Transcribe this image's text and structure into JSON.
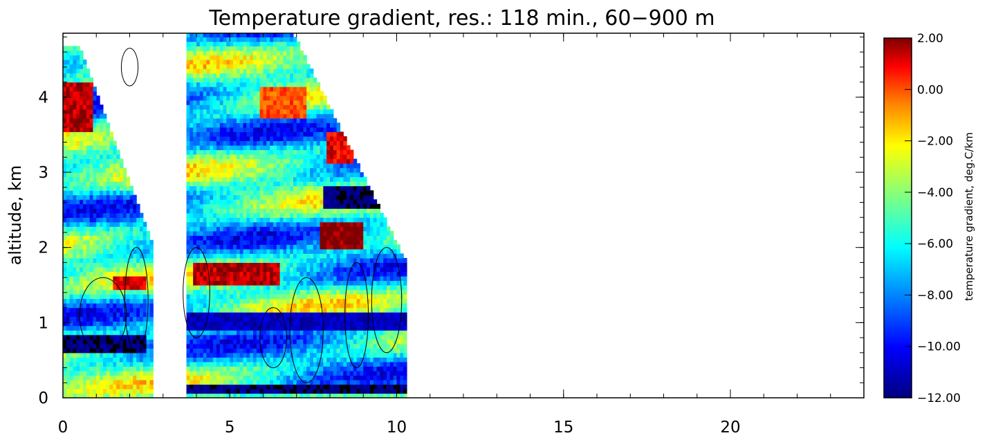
{
  "chart_data": {
    "type": "heatmap",
    "title": "Temperature gradient, res.: 118 min.,  60−900 m",
    "xlabel": "",
    "ylabel": "altitude, km",
    "xlim": [
      0,
      24
    ],
    "ylim": [
      0,
      4.85
    ],
    "x_ticks": [
      "0",
      "5",
      "10",
      "15",
      "20"
    ],
    "y_ticks": [
      "0",
      "1",
      "2",
      "3",
      "4"
    ],
    "colorbar": {
      "label": "temperature gradient, deg.C/km",
      "range": [
        -12,
        2
      ],
      "ticks": [
        "2.00",
        "0.00",
        "−2.00",
        "−4.00",
        "−6.00",
        "−8.00",
        "−10.00",
        "−12.00"
      ]
    },
    "data_coverage": [
      {
        "x": [
          0.0,
          2.7
        ],
        "y_max": 4.65
      },
      {
        "x": [
          3.7,
          10.25
        ],
        "y_max": 4.85
      }
    ],
    "features": [
      {
        "x": [
          0.0,
          0.8
        ],
        "y": [
          3.5,
          4.2
        ],
        "value": 1.5
      },
      {
        "x": [
          1.5,
          2.5
        ],
        "y": [
          1.4,
          1.6
        ],
        "value": 1.0
      },
      {
        "x": [
          3.9,
          6.4
        ],
        "y": [
          1.45,
          1.8
        ],
        "value": 1.5
      },
      {
        "x": [
          5.8,
          7.2
        ],
        "y": [
          3.7,
          4.1
        ],
        "value": 0.0
      },
      {
        "x": [
          7.6,
          8.9
        ],
        "y": [
          1.95,
          2.3
        ],
        "value": 2.0
      },
      {
        "x": [
          7.8,
          8.6
        ],
        "y": [
          3.1,
          3.5
        ],
        "value": 1.0
      },
      {
        "x": [
          7.7,
          10.2
        ],
        "y": [
          2.5,
          2.8
        ],
        "value": -12.0
      },
      {
        "x": [
          0.0,
          2.5
        ],
        "y": [
          0.55,
          0.8
        ],
        "value": -12.0
      },
      {
        "x": [
          3.7,
          10.2
        ],
        "y": [
          0.85,
          1.1
        ],
        "value": -11.0
      },
      {
        "x": [
          3.7,
          10.2
        ],
        "y": [
          0.05,
          0.15
        ],
        "value": -12.0
      }
    ]
  }
}
